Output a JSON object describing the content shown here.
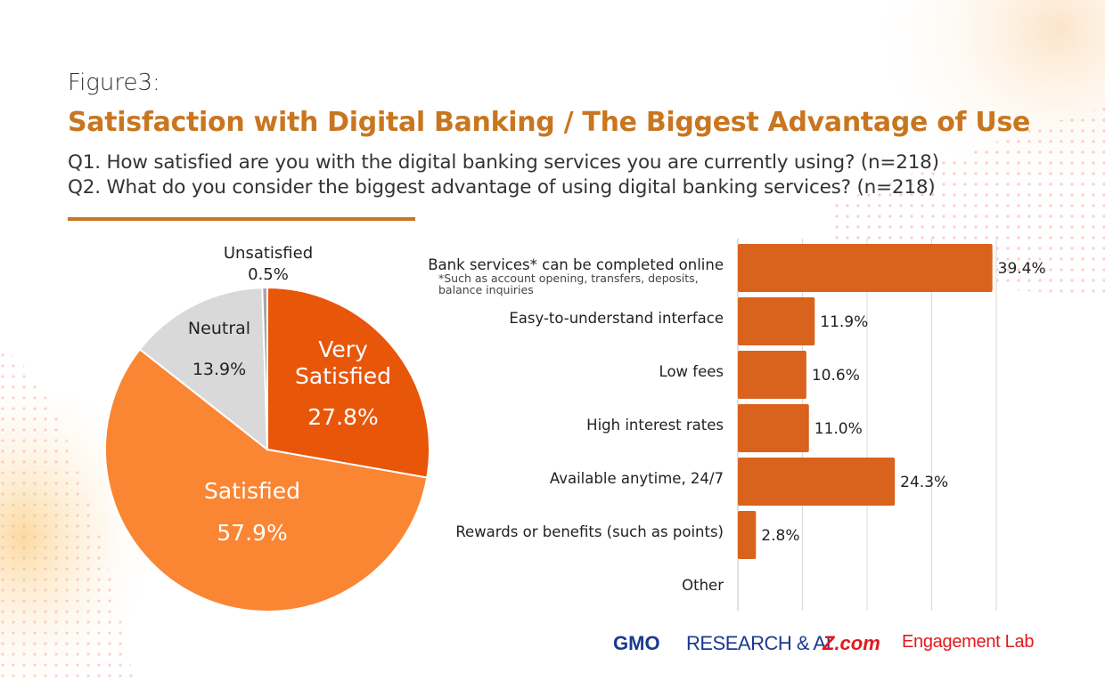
{
  "header": {
    "figure_label": "Figure3:",
    "title": "Satisfaction with Digital Banking / The Biggest Advantage of Use",
    "q1": "Q1. How satisfied are you with the digital banking services you are currently using? (n=218)",
    "q2": "Q2. What do you consider the biggest advantage of using digital banking services? (n=218)"
  },
  "colors": {
    "accent": "#c8761f",
    "very_satisfied": "#e8560a",
    "satisfied": "#fa8533",
    "neutral": "#d9d9d9",
    "unsatisfied": "#a6a6a6",
    "bar": "#d9621c"
  },
  "chart_data": [
    {
      "type": "pie",
      "slices": [
        {
          "label": "Very Satisfied",
          "label_lines": [
            "Very",
            "Satisfied"
          ],
          "value": 27.8,
          "value_text": "27.8%"
        },
        {
          "label": "Satisfied",
          "label_lines": [
            "Satisfied"
          ],
          "value": 57.9,
          "value_text": "57.9%"
        },
        {
          "label": "Neutral",
          "label_lines": [
            "Neutral"
          ],
          "value": 13.9,
          "value_text": "13.9%"
        },
        {
          "label": "Unsatisfied",
          "label_lines": [
            "Unsatisfied"
          ],
          "value": 0.5,
          "value_text": "0.5%"
        }
      ]
    },
    {
      "type": "bar",
      "orientation": "horizontal",
      "categories": [
        "Bank services* can be completed online",
        "Easy-to-understand interface",
        "Low fees",
        "High interest rates",
        "Available anytime, 24/7",
        "Rewards or benefits (such as points)",
        "Other"
      ],
      "values": [
        39.4,
        11.9,
        10.6,
        11.0,
        24.3,
        2.8,
        0
      ],
      "value_labels": [
        "39.4%",
        "11.9%",
        "10.6%",
        "11.0%",
        "24.3%",
        "2.8%",
        ""
      ],
      "note": "*Such as account opening, transfers, deposits, balance inquiries",
      "xlim": [
        0,
        40
      ],
      "grid": true
    }
  ],
  "footer": {
    "logo_gmo": "GMO",
    "logo_research": "RESEARCH & AI",
    "logo_zcom": "Z.com",
    "logo_lab": "Engagement Lab"
  }
}
